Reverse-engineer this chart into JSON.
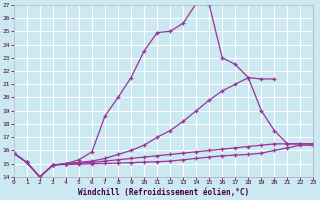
{
  "xlabel": "Windchill (Refroidissement éolien,°C)",
  "line_color": "#993399",
  "bg_color": "#cce8f0",
  "grid_color": "#ffffff",
  "xlim": [
    0,
    23
  ],
  "ylim": [
    14,
    27
  ],
  "yticks": [
    14,
    15,
    16,
    17,
    18,
    19,
    20,
    21,
    22,
    23,
    24,
    25,
    26,
    27
  ],
  "xticks": [
    0,
    1,
    2,
    3,
    4,
    5,
    6,
    7,
    8,
    9,
    10,
    11,
    12,
    13,
    14,
    15,
    16,
    17,
    18,
    19,
    20,
    21,
    22,
    23
  ],
  "series": [
    {
      "x": [
        0,
        1,
        2,
        3,
        4,
        5,
        6,
        7,
        8,
        9,
        10,
        11,
        12,
        13,
        14,
        15,
        16,
        17,
        18,
        19,
        20
      ],
      "y": [
        15.8,
        15.1,
        14.0,
        14.9,
        15.0,
        15.3,
        15.9,
        18.6,
        20.0,
        21.5,
        23.5,
        24.9,
        25.0,
        25.6,
        27.1,
        27.0,
        23.0,
        22.5,
        21.5,
        21.4,
        21.4
      ]
    },
    {
      "x": [
        0,
        1,
        2,
        3,
        4,
        5,
        6,
        7,
        8,
        9,
        10,
        11,
        12,
        13,
        14,
        15,
        16,
        17,
        18,
        19,
        20,
        21,
        22,
        23
      ],
      "y": [
        15.8,
        15.1,
        14.0,
        14.9,
        15.0,
        15.1,
        15.2,
        15.4,
        15.7,
        16.0,
        16.4,
        17.0,
        17.5,
        18.2,
        19.0,
        19.8,
        20.5,
        21.0,
        21.5,
        19.0,
        17.5,
        16.5,
        16.5,
        16.5
      ]
    },
    {
      "x": [
        0,
        1,
        2,
        3,
        4,
        5,
        6,
        7,
        8,
        9,
        10,
        11,
        12,
        13,
        14,
        15,
        16,
        17,
        18,
        19,
        20,
        21,
        22,
        23
      ],
      "y": [
        15.8,
        15.1,
        14.0,
        14.9,
        15.0,
        15.05,
        15.1,
        15.2,
        15.3,
        15.4,
        15.5,
        15.6,
        15.7,
        15.8,
        15.9,
        16.0,
        16.1,
        16.2,
        16.3,
        16.4,
        16.5,
        16.5,
        16.5,
        16.5
      ]
    },
    {
      "x": [
        0,
        1,
        2,
        3,
        4,
        5,
        6,
        7,
        8,
        9,
        10,
        11,
        12,
        13,
        14,
        15,
        16,
        17,
        18,
        19,
        20,
        21,
        22,
        23
      ],
      "y": [
        15.8,
        15.1,
        14.0,
        14.9,
        14.95,
        14.97,
        15.0,
        15.02,
        15.05,
        15.08,
        15.12,
        15.15,
        15.2,
        15.3,
        15.4,
        15.5,
        15.6,
        15.65,
        15.7,
        15.8,
        16.0,
        16.2,
        16.4,
        16.4
      ]
    }
  ]
}
